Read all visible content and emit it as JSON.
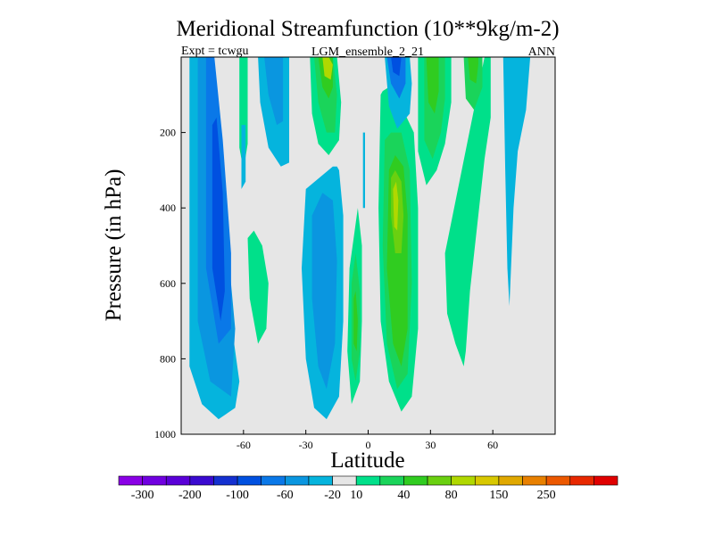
{
  "chart_data": {
    "type": "contour",
    "title": "Meridional Streamfunction (10**9kg/m-2)",
    "left_label": "Expt = tcwgu",
    "center_label": "LGM_ensemble_2_21",
    "right_label": "ANN",
    "xlabel": "Latitude",
    "ylabel": "Pressure (in hPa)",
    "xlim": [
      -90,
      90
    ],
    "ylim": [
      1000,
      0
    ],
    "x_ticks": [
      -60,
      -30,
      0,
      30,
      60
    ],
    "x_tick_labels": [
      "-60",
      "-30",
      "0",
      "30",
      "60"
    ],
    "y_ticks": [
      200,
      400,
      600,
      800,
      1000
    ],
    "y_tick_labels": [
      "200",
      "400",
      "600",
      "800",
      "1000"
    ],
    "background_color": "#e6e6e6",
    "colorbar": {
      "colors": [
        "#8a00e6",
        "#7000e0",
        "#5a00d8",
        "#3a0ad0",
        "#1430d0",
        "#0050e0",
        "#0a78e8",
        "#0a96e0",
        "#05b4dd",
        "#e6e6e6",
        "#00e08a",
        "#1ad45a",
        "#30cc20",
        "#6ad010",
        "#b0d800",
        "#d8c800",
        "#e0a800",
        "#e88000",
        "#ec5800",
        "#e82800",
        "#e00000"
      ],
      "labels": [
        "-300",
        "-200",
        "-100",
        "-60",
        "-20",
        "10",
        "40",
        "80",
        "150",
        "250"
      ],
      "label_boundary_index": [
        1,
        3,
        5,
        7,
        9,
        10,
        12,
        14,
        16,
        18
      ]
    },
    "regions": [
      {
        "name": "sh-ferrel-cell",
        "color_index": 8,
        "lat": [
          -86,
          -86,
          -80,
          -72,
          -64,
          -62,
          -66,
          -70,
          -76,
          -82
        ],
        "p": [
          0,
          820,
          920,
          960,
          930,
          860,
          700,
          480,
          200,
          0
        ]
      },
      {
        "name": "sh-ferrel-core-1",
        "color_index": 7,
        "lat": [
          -82,
          -82,
          -76,
          -66,
          -64,
          -68,
          -72,
          -78
        ],
        "p": [
          0,
          700,
          860,
          900,
          720,
          480,
          200,
          0
        ]
      },
      {
        "name": "sh-ferrel-core-2",
        "color_index": 6,
        "lat": [
          -78,
          -78,
          -72,
          -66,
          -66,
          -70,
          -74
        ],
        "p": [
          0,
          560,
          760,
          720,
          520,
          220,
          0
        ]
      },
      {
        "name": "sh-ferrel-core-3",
        "color_index": 5,
        "lat": [
          -75,
          -75,
          -71,
          -69,
          -70,
          -73
        ],
        "p": [
          180,
          560,
          700,
          620,
          360,
          160
        ]
      },
      {
        "name": "sh-pos-thin",
        "color_index": 10,
        "lat": [
          -62,
          -62,
          -60,
          -58,
          -58
        ],
        "p": [
          0,
          240,
          300,
          230,
          0
        ]
      },
      {
        "name": "sh-neg-thin",
        "color_index": 8,
        "lat": [
          -61,
          -61,
          -59,
          -59
        ],
        "p": [
          180,
          350,
          330,
          180
        ]
      },
      {
        "name": "sh-upper-neg",
        "color_index": 8,
        "lat": [
          -53,
          -52,
          -48,
          -42,
          -38,
          -38,
          -43,
          -47
        ],
        "p": [
          0,
          120,
          240,
          290,
          280,
          0,
          0,
          0
        ]
      },
      {
        "name": "sh-upper-neg-core",
        "color_index": 7,
        "lat": [
          -50,
          -48,
          -44,
          -41,
          -41,
          -46
        ],
        "p": [
          0,
          100,
          180,
          170,
          0,
          0
        ]
      },
      {
        "name": "sh-lower-pos",
        "color_index": 10,
        "lat": [
          -58,
          -57,
          -53,
          -49,
          -48,
          -51,
          -55
        ],
        "p": [
          480,
          640,
          760,
          720,
          600,
          500,
          460
        ]
      },
      {
        "name": "hadley-neg",
        "color_index": 8,
        "lat": [
          -30,
          -32,
          -30,
          -26,
          -20,
          -14,
          -12,
          -12,
          -14,
          -15,
          -17
        ],
        "p": [
          350,
          560,
          800,
          930,
          960,
          900,
          700,
          420,
          300,
          290,
          290
        ]
      },
      {
        "name": "hadley-neg-core",
        "color_index": 7,
        "lat": [
          -27,
          -27,
          -24,
          -20,
          -16,
          -15,
          -17,
          -22
        ],
        "p": [
          420,
          640,
          820,
          880,
          760,
          540,
          380,
          360
        ]
      },
      {
        "name": "upper-pos-cell",
        "color_index": 10,
        "lat": [
          -28,
          -27,
          -24,
          -19,
          -14,
          -13,
          -15,
          -20,
          -25
        ],
        "p": [
          0,
          150,
          230,
          260,
          220,
          120,
          0,
          0,
          0
        ]
      },
      {
        "name": "upper-pos-core-1",
        "color_index": 11,
        "lat": [
          -26,
          -24,
          -20,
          -16,
          -15,
          -17,
          -22
        ],
        "p": [
          0,
          120,
          200,
          200,
          100,
          0,
          0
        ]
      },
      {
        "name": "upper-pos-core-2",
        "color_index": 12,
        "lat": [
          -24,
          -22,
          -19,
          -17,
          -17,
          -20
        ],
        "p": [
          0,
          80,
          110,
          80,
          0,
          0
        ]
      },
      {
        "name": "upper-pos-core-3",
        "color_index": 14,
        "lat": [
          -22,
          -21,
          -18,
          -17,
          -19
        ],
        "p": [
          0,
          50,
          60,
          20,
          0
        ]
      },
      {
        "name": "eq-thin-neg",
        "color_index": 8,
        "lat": [
          -2.5,
          -2.5,
          -1.5,
          -1.5
        ],
        "p": [
          200,
          400,
          400,
          200
        ]
      },
      {
        "name": "eq-pos",
        "color_index": 10,
        "lat": [
          -9,
          -10,
          -8,
          -4,
          -3,
          -3,
          -5
        ],
        "p": [
          560,
          780,
          920,
          860,
          700,
          500,
          400
        ]
      },
      {
        "name": "eq-pos-core",
        "color_index": 11,
        "lat": [
          -8,
          -8,
          -6,
          -4,
          -4,
          -6
        ],
        "p": [
          600,
          800,
          860,
          780,
          620,
          520
        ]
      },
      {
        "name": "eq-pos-core-2",
        "color_index": 12,
        "lat": [
          -7,
          -7,
          -5.5,
          -5,
          -6
        ],
        "p": [
          640,
          760,
          780,
          700,
          620
        ]
      },
      {
        "name": "nh-hadley-pos",
        "color_index": 10,
        "lat": [
          6,
          5,
          6,
          10,
          16,
          21,
          24,
          24,
          22,
          16,
          10,
          7
        ],
        "p": [
          100,
          400,
          700,
          860,
          940,
          900,
          720,
          400,
          200,
          130,
          80,
          90
        ]
      },
      {
        "name": "nh-hadley-pos-core-1",
        "color_index": 11,
        "lat": [
          8,
          7,
          9,
          14,
          19,
          21,
          20,
          16,
          11
        ],
        "p": [
          220,
          500,
          760,
          880,
          840,
          600,
          300,
          200,
          200
        ]
      },
      {
        "name": "nh-hadley-pos-core-2",
        "color_index": 12,
        "lat": [
          10,
          9,
          12,
          16,
          19,
          19,
          17,
          13
        ],
        "p": [
          300,
          560,
          760,
          820,
          720,
          420,
          290,
          260
        ]
      },
      {
        "name": "nh-hadley-pos-core-3",
        "color_index": 13,
        "lat": [
          11,
          11,
          13,
          16,
          17,
          16,
          13
        ],
        "p": [
          320,
          420,
          520,
          520,
          420,
          330,
          300
        ]
      },
      {
        "name": "nh-hadley-pos-core-4",
        "color_index": 14,
        "lat": [
          12,
          12.5,
          14,
          14.5,
          13.5
        ],
        "p": [
          350,
          450,
          460,
          380,
          330
        ]
      },
      {
        "name": "nh-upper-neg",
        "color_index": 8,
        "lat": [
          8,
          10,
          14,
          20,
          21,
          20
        ],
        "p": [
          0,
          130,
          190,
          150,
          70,
          0
        ]
      },
      {
        "name": "nh-upper-neg-core",
        "color_index": 6,
        "lat": [
          9,
          11,
          15,
          18,
          18
        ],
        "p": [
          0,
          70,
          110,
          70,
          0
        ]
      },
      {
        "name": "nh-upper-neg-core-2",
        "color_index": 5,
        "lat": [
          11,
          12,
          15,
          16
        ],
        "p": [
          0,
          40,
          50,
          0
        ]
      },
      {
        "name": "nh-upper-pos",
        "color_index": 10,
        "lat": [
          24,
          24,
          28,
          33,
          37,
          40,
          40
        ],
        "p": [
          0,
          250,
          340,
          300,
          230,
          120,
          0
        ]
      },
      {
        "name": "nh-upper-pos-core",
        "color_index": 11,
        "lat": [
          27,
          27,
          31,
          35,
          37,
          37
        ],
        "p": [
          0,
          220,
          270,
          200,
          110,
          0
        ]
      },
      {
        "name": "nh-upper-pos-core-2",
        "color_index": 12,
        "lat": [
          28,
          29,
          32,
          34,
          34
        ],
        "p": [
          0,
          120,
          150,
          90,
          0
        ]
      },
      {
        "name": "nh-mid-pos",
        "color_index": 10,
        "lat": [
          37,
          38,
          42,
          46,
          47,
          49,
          53,
          56,
          59,
          59,
          56
        ],
        "p": [
          520,
          680,
          760,
          820,
          780,
          620,
          420,
          270,
          160,
          0,
          0
        ]
      },
      {
        "name": "nh-mid-pos-core",
        "color_index": 11,
        "lat": [
          46,
          47,
          51,
          55,
          55,
          52
        ],
        "p": [
          0,
          110,
          140,
          80,
          0,
          0
        ]
      },
      {
        "name": "nh-mid-pos-core-2",
        "color_index": 12,
        "lat": [
          48,
          49,
          52,
          53,
          53
        ],
        "p": [
          0,
          60,
          70,
          20,
          0
        ]
      },
      {
        "name": "nh-polar-neg",
        "color_index": 8,
        "lat": [
          65,
          66,
          67,
          68,
          70,
          72,
          76,
          78,
          78
        ],
        "p": [
          0,
          300,
          560,
          660,
          400,
          250,
          140,
          0,
          0
        ]
      }
    ]
  }
}
